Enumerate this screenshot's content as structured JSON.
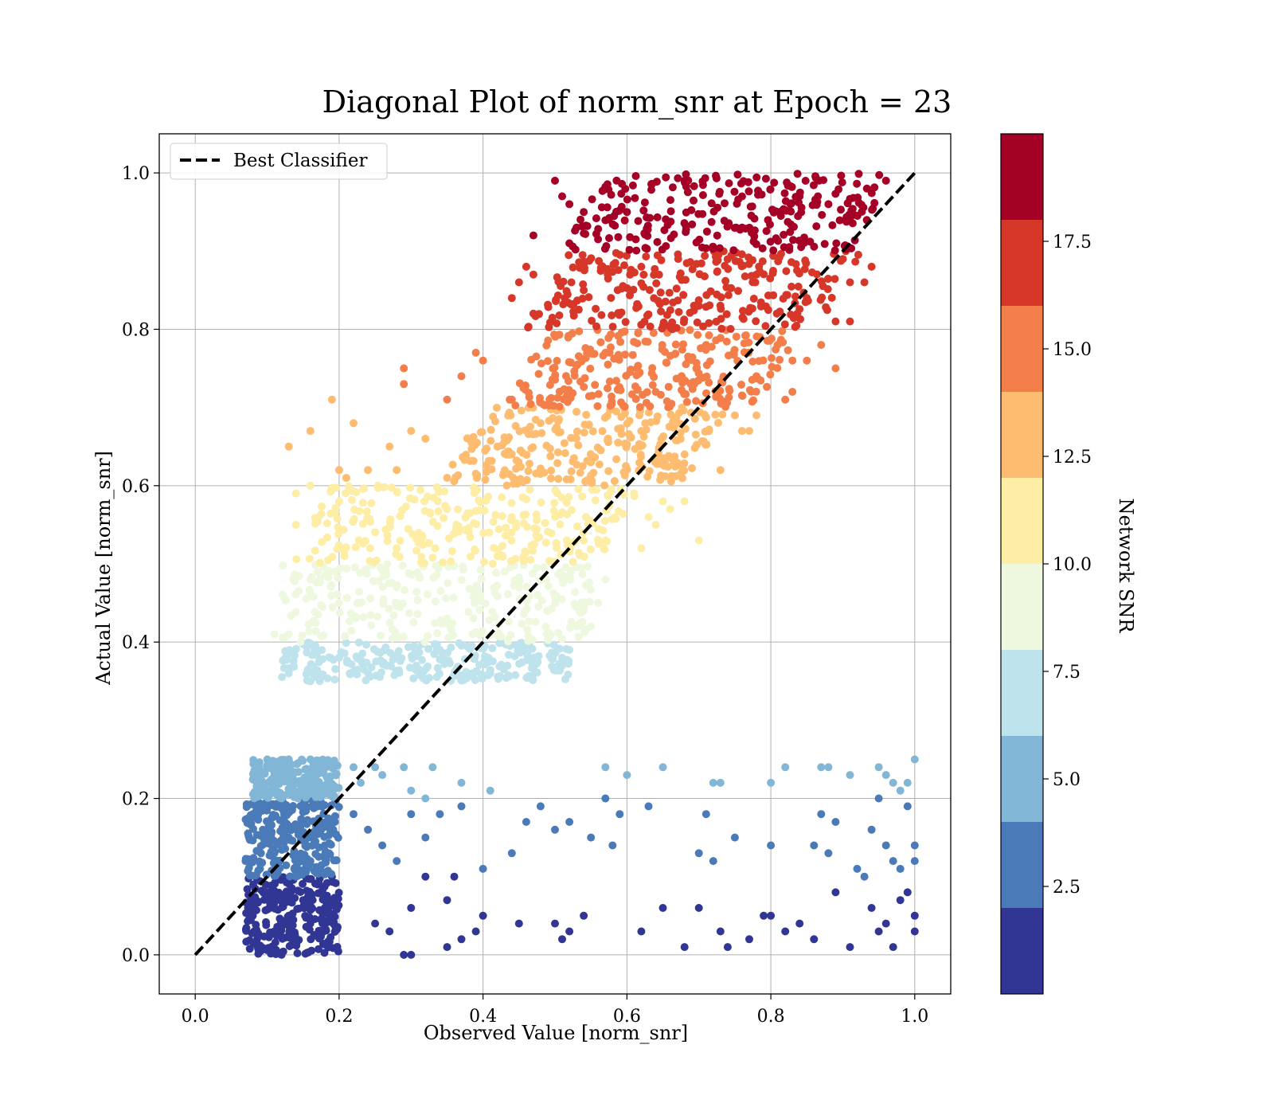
{
  "chart_data": {
    "type": "scatter",
    "title": "Diagonal Plot of norm_snr at Epoch = 23",
    "xlabel": "Observed Value [norm_snr]",
    "ylabel": "Actual Value [norm_snr]",
    "xlim": [
      -0.05,
      1.05
    ],
    "ylim": [
      -0.05,
      1.05
    ],
    "x_ticks": [
      "0.0",
      "0.2",
      "0.4",
      "0.6",
      "0.8",
      "1.0"
    ],
    "y_ticks": [
      "0.0",
      "0.2",
      "0.4",
      "0.6",
      "0.8",
      "1.0"
    ],
    "grid": true,
    "legend": {
      "location": "upper-left",
      "entries": [
        "Best Classifier"
      ]
    },
    "reference_line": {
      "name": "Best Classifier",
      "style": "dashed",
      "color": "#000000",
      "points": [
        [
          0,
          0
        ],
        [
          1,
          1
        ]
      ]
    },
    "colorbar": {
      "label": "Network SNR",
      "range": [
        0,
        20
      ],
      "ticks": [
        "2.5",
        "5.0",
        "7.5",
        "10.0",
        "12.5",
        "15.0",
        "17.5"
      ],
      "bands": [
        {
          "min": 0,
          "max": 2,
          "color": "#313695"
        },
        {
          "min": 2,
          "max": 4,
          "color": "#4a7ab7"
        },
        {
          "min": 4,
          "max": 6,
          "color": "#82b6d7"
        },
        {
          "min": 6,
          "max": 8,
          "color": "#bee3ec"
        },
        {
          "min": 8,
          "max": 10,
          "color": "#eef8df"
        },
        {
          "min": 10,
          "max": 12,
          "color": "#fdeda5"
        },
        {
          "min": 12,
          "max": 14,
          "color": "#fdbc6f"
        },
        {
          "min": 14,
          "max": 16,
          "color": "#f47e4a"
        },
        {
          "min": 16,
          "max": 18,
          "color": "#d73729"
        },
        {
          "min": 18,
          "max": 20,
          "color": "#a50026"
        }
      ]
    },
    "series": [
      {
        "band": 0,
        "values_range": {
          "x": [
            0.07,
            0.2
          ],
          "y": [
            0.0,
            0.1
          ]
        },
        "core_points": [
          [
            0.09,
            0.01
          ],
          [
            0.11,
            0.03
          ],
          [
            0.13,
            0.05
          ],
          [
            0.15,
            0.07
          ],
          [
            0.17,
            0.09
          ],
          [
            0.12,
            0.0
          ],
          [
            0.14,
            0.02
          ],
          [
            0.16,
            0.04
          ],
          [
            0.18,
            0.06
          ],
          [
            0.1,
            0.08
          ],
          [
            0.19,
            0.1
          ],
          [
            0.08,
            0.05
          ]
        ],
        "outliers": [
          [
            0.4,
            0.05
          ],
          [
            0.45,
            0.04
          ],
          [
            0.5,
            0.04
          ],
          [
            0.52,
            0.03
          ],
          [
            0.51,
            0.02
          ],
          [
            0.54,
            0.05
          ],
          [
            0.62,
            0.03
          ],
          [
            0.65,
            0.06
          ],
          [
            0.68,
            0.01
          ],
          [
            0.7,
            0.06
          ],
          [
            0.73,
            0.03
          ],
          [
            0.74,
            0.01
          ],
          [
            0.77,
            0.02
          ],
          [
            0.79,
            0.05
          ],
          [
            0.8,
            0.05
          ],
          [
            0.82,
            0.03
          ],
          [
            0.84,
            0.04
          ],
          [
            0.86,
            0.02
          ],
          [
            0.89,
            0.08
          ],
          [
            0.91,
            0.01
          ],
          [
            0.94,
            0.06
          ],
          [
            0.95,
            0.03
          ],
          [
            0.96,
            0.04
          ],
          [
            0.97,
            0.01
          ],
          [
            0.98,
            0.07
          ],
          [
            0.99,
            0.08
          ],
          [
            1.0,
            0.05
          ],
          [
            1.0,
            0.03
          ],
          [
            0.29,
            0.0
          ],
          [
            0.3,
            0.0
          ],
          [
            0.35,
            0.01
          ],
          [
            0.37,
            0.02
          ],
          [
            0.39,
            0.03
          ],
          [
            0.3,
            0.06
          ],
          [
            0.32,
            0.1
          ],
          [
            0.35,
            0.07
          ],
          [
            0.36,
            0.1
          ],
          [
            0.25,
            0.04
          ],
          [
            0.27,
            0.03
          ]
        ]
      },
      {
        "band": 1,
        "values_range": {
          "x": [
            0.07,
            0.2
          ],
          "y": [
            0.1,
            0.2
          ]
        },
        "core_points": [
          [
            0.09,
            0.11
          ],
          [
            0.11,
            0.13
          ],
          [
            0.13,
            0.15
          ],
          [
            0.15,
            0.17
          ],
          [
            0.17,
            0.19
          ],
          [
            0.08,
            0.18
          ],
          [
            0.12,
            0.2
          ],
          [
            0.16,
            0.12
          ],
          [
            0.18,
            0.14
          ],
          [
            0.1,
            0.16
          ],
          [
            0.07,
            0.12
          ],
          [
            0.14,
            0.1
          ]
        ],
        "outliers": [
          [
            0.22,
            0.18
          ],
          [
            0.24,
            0.16
          ],
          [
            0.26,
            0.14
          ],
          [
            0.28,
            0.12
          ],
          [
            0.3,
            0.18
          ],
          [
            0.32,
            0.15
          ],
          [
            0.34,
            0.18
          ],
          [
            0.37,
            0.19
          ],
          [
            0.4,
            0.11
          ],
          [
            0.44,
            0.13
          ],
          [
            0.46,
            0.17
          ],
          [
            0.48,
            0.19
          ],
          [
            0.5,
            0.16
          ],
          [
            0.52,
            0.17
          ],
          [
            0.55,
            0.15
          ],
          [
            0.57,
            0.2
          ],
          [
            0.58,
            0.14
          ],
          [
            0.59,
            0.18
          ],
          [
            0.63,
            0.19
          ],
          [
            0.7,
            0.13
          ],
          [
            0.71,
            0.18
          ],
          [
            0.72,
            0.12
          ],
          [
            0.75,
            0.15
          ],
          [
            0.8,
            0.14
          ],
          [
            0.86,
            0.14
          ],
          [
            0.87,
            0.18
          ],
          [
            0.88,
            0.13
          ],
          [
            0.89,
            0.17
          ],
          [
            0.92,
            0.11
          ],
          [
            0.93,
            0.1
          ],
          [
            0.94,
            0.16
          ],
          [
            0.95,
            0.2
          ],
          [
            0.96,
            0.14
          ],
          [
            0.97,
            0.12
          ],
          [
            0.98,
            0.11
          ],
          [
            0.99,
            0.19
          ],
          [
            1.0,
            0.14
          ],
          [
            1.0,
            0.12
          ]
        ]
      },
      {
        "band": 2,
        "values_range": {
          "x": [
            0.08,
            0.2
          ],
          "y": [
            0.2,
            0.25
          ]
        },
        "core_points": [
          [
            0.09,
            0.21
          ],
          [
            0.11,
            0.23
          ],
          [
            0.13,
            0.25
          ],
          [
            0.15,
            0.22
          ],
          [
            0.17,
            0.24
          ],
          [
            0.19,
            0.21
          ],
          [
            0.12,
            0.2
          ],
          [
            0.16,
            0.25
          ]
        ],
        "outliers": [
          [
            0.22,
            0.24
          ],
          [
            0.23,
            0.22
          ],
          [
            0.25,
            0.24
          ],
          [
            0.26,
            0.23
          ],
          [
            0.29,
            0.24
          ],
          [
            0.3,
            0.21
          ],
          [
            0.32,
            0.2
          ],
          [
            0.33,
            0.24
          ],
          [
            0.37,
            0.22
          ],
          [
            0.41,
            0.21
          ],
          [
            0.57,
            0.24
          ],
          [
            0.6,
            0.23
          ],
          [
            0.65,
            0.24
          ],
          [
            0.72,
            0.22
          ],
          [
            0.73,
            0.22
          ],
          [
            0.8,
            0.22
          ],
          [
            0.82,
            0.24
          ],
          [
            0.87,
            0.24
          ],
          [
            0.88,
            0.24
          ],
          [
            0.91,
            0.23
          ],
          [
            0.95,
            0.24
          ],
          [
            0.96,
            0.23
          ],
          [
            0.97,
            0.22
          ],
          [
            0.98,
            0.21
          ],
          [
            0.99,
            0.22
          ],
          [
            1.0,
            0.25
          ]
        ]
      },
      {
        "band": 3,
        "values_range": {
          "x": [
            0.12,
            0.52
          ],
          "y": [
            0.35,
            0.4
          ]
        },
        "core_points": [
          [
            0.13,
            0.36
          ],
          [
            0.2,
            0.38
          ],
          [
            0.27,
            0.37
          ],
          [
            0.34,
            0.39
          ],
          [
            0.41,
            0.36
          ],
          [
            0.47,
            0.38
          ],
          [
            0.51,
            0.37
          ],
          [
            0.16,
            0.35
          ]
        ],
        "outliers": [
          [
            0.52,
            0.39
          ],
          [
            0.51,
            0.38
          ]
        ]
      },
      {
        "band": 4,
        "values_range": {
          "x": [
            0.12,
            0.55
          ],
          "y": [
            0.4,
            0.5
          ]
        },
        "core_points": [
          [
            0.13,
            0.41
          ],
          [
            0.2,
            0.45
          ],
          [
            0.28,
            0.47
          ],
          [
            0.35,
            0.43
          ],
          [
            0.43,
            0.49
          ],
          [
            0.5,
            0.46
          ],
          [
            0.54,
            0.44
          ],
          [
            0.16,
            0.48
          ]
        ],
        "outliers": [
          [
            0.11,
            0.41
          ],
          [
            0.56,
            0.45
          ],
          [
            0.55,
            0.42
          ],
          [
            0.53,
            0.42
          ],
          [
            0.57,
            0.48
          ]
        ]
      },
      {
        "band": 5,
        "values_range": {
          "x": [
            0.13,
            0.62
          ],
          "y": [
            0.5,
            0.6
          ]
        },
        "core_points": [
          [
            0.14,
            0.55
          ],
          [
            0.2,
            0.58
          ],
          [
            0.28,
            0.52
          ],
          [
            0.35,
            0.57
          ],
          [
            0.42,
            0.51
          ],
          [
            0.5,
            0.56
          ],
          [
            0.57,
            0.53
          ],
          [
            0.61,
            0.59
          ]
        ],
        "outliers": [
          [
            0.64,
            0.55
          ],
          [
            0.65,
            0.58
          ],
          [
            0.66,
            0.57
          ],
          [
            0.7,
            0.53
          ],
          [
            0.68,
            0.58
          ],
          [
            0.62,
            0.52
          ],
          [
            0.63,
            0.56
          ],
          [
            0.14,
            0.59
          ],
          [
            0.16,
            0.6
          ]
        ]
      },
      {
        "band": 6,
        "values_range": {
          "x": [
            0.34,
            0.74
          ],
          "y": [
            0.6,
            0.7
          ]
        },
        "core_points": [
          [
            0.35,
            0.61
          ],
          [
            0.42,
            0.65
          ],
          [
            0.48,
            0.68
          ],
          [
            0.55,
            0.63
          ],
          [
            0.62,
            0.67
          ],
          [
            0.68,
            0.64
          ],
          [
            0.73,
            0.62
          ]
        ],
        "outliers": [
          [
            0.13,
            0.65
          ],
          [
            0.16,
            0.67
          ],
          [
            0.19,
            0.71
          ],
          [
            0.22,
            0.68
          ],
          [
            0.2,
            0.62
          ],
          [
            0.21,
            0.61
          ],
          [
            0.24,
            0.62
          ],
          [
            0.27,
            0.65
          ],
          [
            0.28,
            0.62
          ],
          [
            0.3,
            0.67
          ],
          [
            0.32,
            0.66
          ],
          [
            0.76,
            0.67
          ],
          [
            0.78,
            0.69
          ],
          [
            0.75,
            0.69
          ],
          [
            0.77,
            0.67
          ]
        ]
      },
      {
        "band": 7,
        "values_range": {
          "x": [
            0.43,
            0.84
          ],
          "y": [
            0.7,
            0.8
          ]
        },
        "core_points": [
          [
            0.44,
            0.71
          ],
          [
            0.5,
            0.74
          ],
          [
            0.57,
            0.77
          ],
          [
            0.64,
            0.72
          ],
          [
            0.71,
            0.78
          ],
          [
            0.78,
            0.74
          ],
          [
            0.82,
            0.71
          ]
        ],
        "outliers": [
          [
            0.29,
            0.75
          ],
          [
            0.29,
            0.73
          ],
          [
            0.35,
            0.71
          ],
          [
            0.37,
            0.74
          ],
          [
            0.39,
            0.77
          ],
          [
            0.4,
            0.76
          ],
          [
            0.83,
            0.76
          ],
          [
            0.85,
            0.76
          ],
          [
            0.83,
            0.72
          ],
          [
            0.89,
            0.75
          ],
          [
            0.87,
            0.78
          ]
        ]
      },
      {
        "band": 8,
        "values_range": {
          "x": [
            0.46,
            0.93
          ],
          "y": [
            0.8,
            0.9
          ]
        },
        "core_points": [
          [
            0.47,
            0.82
          ],
          [
            0.54,
            0.85
          ],
          [
            0.62,
            0.88
          ],
          [
            0.7,
            0.83
          ],
          [
            0.78,
            0.87
          ],
          [
            0.85,
            0.84
          ],
          [
            0.91,
            0.81
          ]
        ],
        "outliers": [
          [
            0.44,
            0.84
          ],
          [
            0.45,
            0.86
          ],
          [
            0.46,
            0.88
          ],
          [
            0.47,
            0.87
          ],
          [
            0.91,
            0.86
          ],
          [
            0.93,
            0.86
          ],
          [
            0.94,
            0.88
          ],
          [
            0.89,
            0.81
          ]
        ]
      },
      {
        "band": 9,
        "values_range": {
          "x": [
            0.51,
            0.97
          ],
          "y": [
            0.9,
            1.0
          ]
        },
        "core_points": [
          [
            0.52,
            0.91
          ],
          [
            0.6,
            0.95
          ],
          [
            0.68,
            0.99
          ],
          [
            0.76,
            0.93
          ],
          [
            0.84,
            0.97
          ],
          [
            0.91,
            0.94
          ],
          [
            0.96,
            0.99
          ]
        ],
        "outliers": [
          [
            0.47,
            0.92
          ],
          [
            0.5,
            0.99
          ],
          [
            0.51,
            0.97
          ],
          [
            0.52,
            0.96
          ],
          [
            0.53,
            0.93
          ],
          [
            0.54,
            0.95
          ]
        ]
      }
    ]
  }
}
